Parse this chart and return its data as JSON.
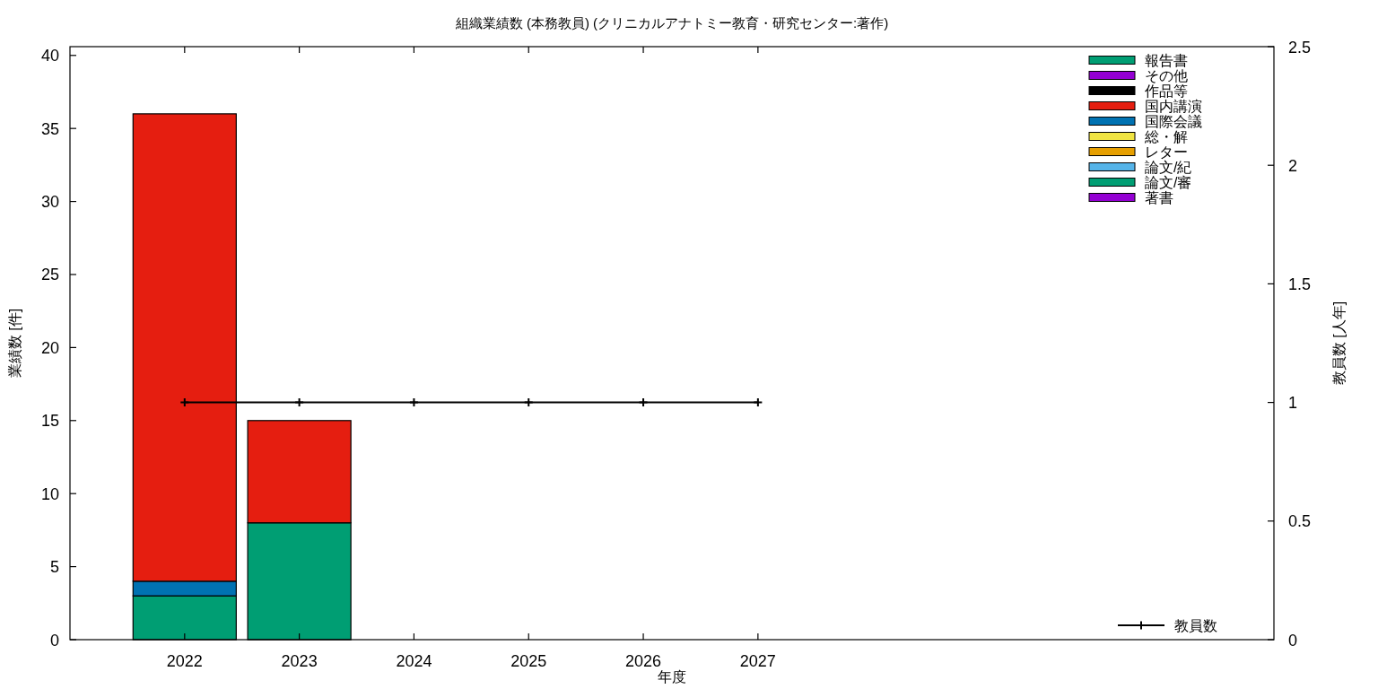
{
  "chart_data": {
    "type": "bar",
    "stacked": true,
    "title": "組織業績数 (本務教員) (クリニカルアナトミー教育・研究センター:著作)",
    "xlabel": "年度",
    "ylabel": "業績数 [件]",
    "y2label": "教員数 [人年]",
    "x": [
      2022,
      2023
    ],
    "xlim": [
      2021,
      2031.5
    ],
    "xticks": [
      2022,
      2023,
      2024,
      2025,
      2026,
      2027
    ],
    "ylim": [
      0,
      40.6
    ],
    "yticks": [
      0,
      5,
      10,
      15,
      20,
      25,
      30,
      35,
      40
    ],
    "y2lim": [
      0,
      2.5
    ],
    "y2ticks": [
      0,
      0.5,
      1,
      1.5,
      2,
      2.5
    ],
    "legend": "top right",
    "series": [
      {
        "name": "著書",
        "color": "#9400d3",
        "values": [
          0,
          0
        ]
      },
      {
        "name": "論文/審",
        "color": "#009e73",
        "values": [
          3,
          8
        ]
      },
      {
        "name": "論文/紀",
        "color": "#56b4e9",
        "values": [
          0,
          0
        ]
      },
      {
        "name": "レター",
        "color": "#e69f00",
        "values": [
          0,
          0
        ]
      },
      {
        "name": "総・解",
        "color": "#f0e442",
        "values": [
          0,
          0
        ]
      },
      {
        "name": "国際会議",
        "color": "#0072b2",
        "values": [
          1,
          0
        ]
      },
      {
        "name": "国内講演",
        "color": "#e51e10",
        "values": [
          32,
          7
        ]
      },
      {
        "name": "作品等",
        "color": "#000000",
        "values": [
          0,
          0
        ]
      },
      {
        "name": "その他",
        "color": "#9400d3",
        "values": [
          0,
          0
        ]
      },
      {
        "name": "報告書",
        "color": "#009e73",
        "values": [
          0,
          0
        ]
      },
      {
        "name": "教員数",
        "type": "line",
        "axis": "y2",
        "color": "#000000",
        "marker": "cross",
        "line_style": "solid",
        "x": [
          2022,
          2023,
          2024,
          2025,
          2026,
          2027
        ],
        "values": [
          1,
          1,
          1,
          1,
          1,
          1
        ]
      }
    ]
  }
}
